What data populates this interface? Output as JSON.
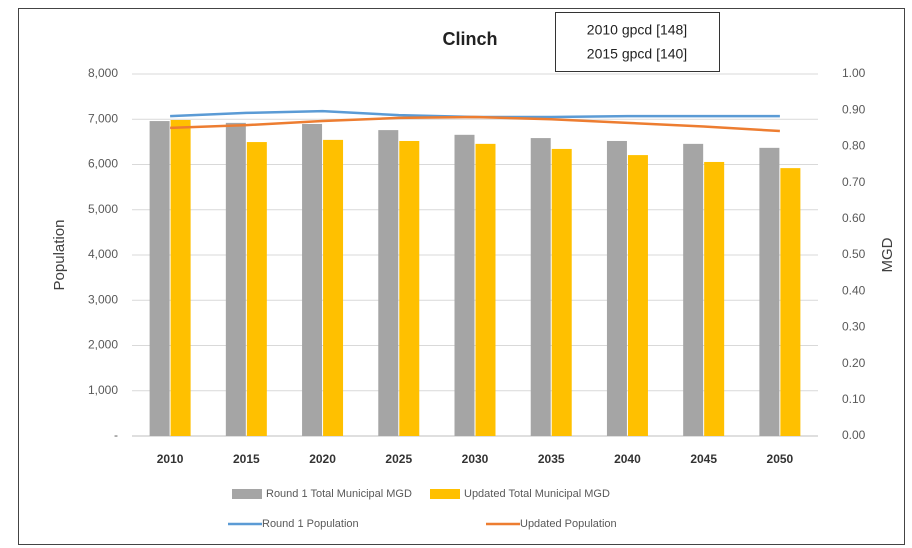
{
  "chart_data": {
    "type": "bar",
    "title": "Clinch",
    "annotations": [
      "2010 gpcd [148]",
      "2015 gpcd [140]"
    ],
    "y_label": "Population",
    "y2_label": "MGD",
    "categories": [
      "2010",
      "2015",
      "2020",
      "2025",
      "2030",
      "2035",
      "2040",
      "2045",
      "2050"
    ],
    "series": [
      {
        "name": "Round 1 Total Municipal MGD",
        "type": "bar",
        "axis": "y2",
        "color": "#a5a5a5",
        "values": [
          0.87,
          0.865,
          0.862,
          0.845,
          0.832,
          0.823,
          0.815,
          0.807,
          0.796
        ]
      },
      {
        "name": "Updated Total Municipal MGD",
        "type": "bar",
        "axis": "y2",
        "color": "#ffc000",
        "values": [
          0.873,
          0.812,
          0.818,
          0.815,
          0.807,
          0.793,
          0.776,
          0.757,
          0.74
        ]
      },
      {
        "name": "Round 1 Population",
        "type": "line",
        "axis": "y",
        "color": "#5b9bd5",
        "values": [
          7070,
          7140,
          7180,
          7090,
          7050,
          7050,
          7070,
          7070,
          7070
        ]
      },
      {
        "name": "Updated Population",
        "type": "line",
        "axis": "y",
        "color": "#ed7d31",
        "values": [
          6810,
          6870,
          6960,
          7030,
          7050,
          7000,
          6920,
          6840,
          6740
        ]
      }
    ],
    "ylim": [
      0,
      8000
    ],
    "yticks": [
      {
        "value": 0,
        "label": "-"
      },
      {
        "value": 1000,
        "label": "1,000"
      },
      {
        "value": 2000,
        "label": "2,000"
      },
      {
        "value": 3000,
        "label": "3,000"
      },
      {
        "value": 4000,
        "label": "4,000"
      },
      {
        "value": 5000,
        "label": "5,000"
      },
      {
        "value": 6000,
        "label": "6,000"
      },
      {
        "value": 7000,
        "label": "7,000"
      },
      {
        "value": 8000,
        "label": "8,000"
      }
    ],
    "y2lim": [
      0,
      1
    ],
    "y2ticks": [
      {
        "value": 0,
        "label": "0.00"
      },
      {
        "value": 0.1,
        "label": "0.10"
      },
      {
        "value": 0.2,
        "label": "0.20"
      },
      {
        "value": 0.3,
        "label": "0.30"
      },
      {
        "value": 0.4,
        "label": "0.40"
      },
      {
        "value": 0.5,
        "label": "0.50"
      },
      {
        "value": 0.6,
        "label": "0.60"
      },
      {
        "value": 0.7,
        "label": "0.70"
      },
      {
        "value": 0.8,
        "label": "0.80"
      },
      {
        "value": 0.9,
        "label": "0.90"
      },
      {
        "value": 1,
        "label": "1.00"
      }
    ],
    "grid": true,
    "legend": "bottom"
  }
}
